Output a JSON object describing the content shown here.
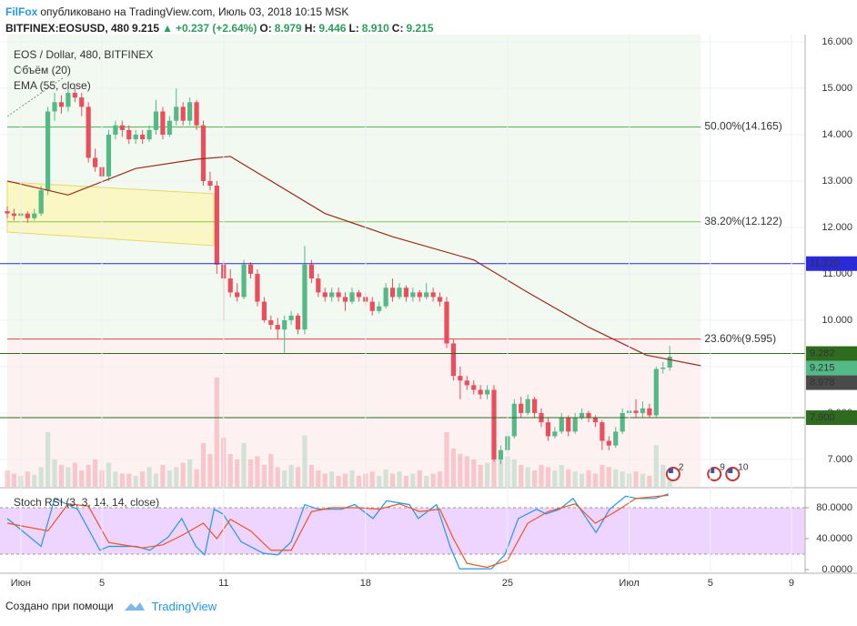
{
  "header": {
    "author": "FilFox",
    "published": "опубликовано на TradingView.com, Июль 03, 2018 10:15 MSK",
    "symbol": "BITFINEX:EOSUSD, 480",
    "last": "9.215",
    "arrow": "▲",
    "change": "+0.237 (+2.64%)",
    "ohlc": [
      {
        "label": "O:",
        "value": "8.979"
      },
      {
        "label": "H:",
        "value": "9.446"
      },
      {
        "label": "L:",
        "value": "8.910"
      },
      {
        "label": "C:",
        "value": "9.215"
      }
    ]
  },
  "chart_data": {
    "type": "candlestick",
    "legend": [
      "EOS / Dollar, 480, BITFINEX",
      "Объём (20)",
      "EMA (55, close)"
    ],
    "up_color": "#53b987",
    "down_color": "#eb4d5c",
    "xlim": [
      -1.08,
      118.03
    ],
    "ylim": [
      6.41,
      16.157
    ],
    "xticks": [
      {
        "value": 2,
        "label": "Июн"
      },
      {
        "value": 14,
        "label": "5"
      },
      {
        "value": 32,
        "label": "11"
      },
      {
        "value": 53,
        "label": "18"
      },
      {
        "value": 74,
        "label": "25"
      },
      {
        "value": 92,
        "label": "Июл"
      },
      {
        "value": 104,
        "label": "5"
      },
      {
        "value": 116,
        "label": "9"
      }
    ],
    "yticks": [
      {
        "value": 7,
        "label": "7.000"
      },
      {
        "value": 8,
        "label": "8.000"
      },
      {
        "value": 9,
        "label": "9.000"
      },
      {
        "value": 10,
        "label": "10.000"
      },
      {
        "value": 11,
        "label": "11.000"
      },
      {
        "value": 12,
        "label": "12.000"
      },
      {
        "value": 13,
        "label": "13.000"
      },
      {
        "value": 14,
        "label": "14.000"
      },
      {
        "value": 15,
        "label": "15.000"
      },
      {
        "value": 16,
        "label": "16.000"
      }
    ],
    "ohlc": [
      [
        12.35,
        12.45,
        12.2,
        12.3
      ],
      [
        12.3,
        12.4,
        12.15,
        12.25
      ],
      [
        12.25,
        12.4,
        12.2,
        12.3
      ],
      [
        12.3,
        12.35,
        12.1,
        12.2
      ],
      [
        12.2,
        12.4,
        12.15,
        12.3
      ],
      [
        12.3,
        12.9,
        12.25,
        12.8
      ],
      [
        12.8,
        14.6,
        12.7,
        14.5
      ],
      [
        14.5,
        14.9,
        14.3,
        14.7
      ],
      [
        14.7,
        14.85,
        14.45,
        14.6
      ],
      [
        14.6,
        15.05,
        14.5,
        14.9
      ],
      [
        14.9,
        15.0,
        14.7,
        14.8
      ],
      [
        14.8,
        14.9,
        14.4,
        14.6
      ],
      [
        14.6,
        14.7,
        13.4,
        13.5
      ],
      [
        13.5,
        13.7,
        13.2,
        13.3
      ],
      [
        13.3,
        13.4,
        12.95,
        13.1
      ],
      [
        13.1,
        14.1,
        13.0,
        14.0
      ],
      [
        14.0,
        14.3,
        13.9,
        14.2
      ],
      [
        14.2,
        14.3,
        13.95,
        14.1
      ],
      [
        14.1,
        14.2,
        13.8,
        13.9
      ],
      [
        13.9,
        14.1,
        13.8,
        14.0
      ],
      [
        14.0,
        14.1,
        13.8,
        13.9
      ],
      [
        13.9,
        14.2,
        13.85,
        14.1
      ],
      [
        14.1,
        14.75,
        14.0,
        14.5
      ],
      [
        14.5,
        14.6,
        13.9,
        14.0
      ],
      [
        14.0,
        14.4,
        13.95,
        14.3
      ],
      [
        14.3,
        15.0,
        14.2,
        14.6
      ],
      [
        14.6,
        14.7,
        14.2,
        14.3
      ],
      [
        14.3,
        14.8,
        14.2,
        14.7
      ],
      [
        14.7,
        14.75,
        14.1,
        14.2
      ],
      [
        14.2,
        14.3,
        12.9,
        13.0
      ],
      [
        13.0,
        13.2,
        12.8,
        12.9
      ],
      [
        12.9,
        13.0,
        11.0,
        11.2
      ],
      [
        11.2,
        11.3,
        10.0,
        10.9
      ],
      [
        10.9,
        11.1,
        10.5,
        10.6
      ],
      [
        10.6,
        10.8,
        10.4,
        10.5
      ],
      [
        10.5,
        11.3,
        10.45,
        11.2
      ],
      [
        11.2,
        11.25,
        10.9,
        11.0
      ],
      [
        11.0,
        11.1,
        10.3,
        10.4
      ],
      [
        10.4,
        10.5,
        9.95,
        10.0
      ],
      [
        10.0,
        10.1,
        9.8,
        9.9
      ],
      [
        9.9,
        10.05,
        9.6,
        9.8
      ],
      [
        9.8,
        10.1,
        9.3,
        10.0
      ],
      [
        10.0,
        10.2,
        9.9,
        10.1
      ],
      [
        10.1,
        10.15,
        9.7,
        9.8
      ],
      [
        9.8,
        11.6,
        9.7,
        11.2
      ],
      [
        11.2,
        11.3,
        10.8,
        10.9
      ],
      [
        10.9,
        11.0,
        10.5,
        10.6
      ],
      [
        10.6,
        10.7,
        10.4,
        10.5
      ],
      [
        10.5,
        10.7,
        10.4,
        10.6
      ],
      [
        10.6,
        10.7,
        10.4,
        10.5
      ],
      [
        10.5,
        10.6,
        10.2,
        10.4
      ],
      [
        10.4,
        10.7,
        10.35,
        10.6
      ],
      [
        10.6,
        10.65,
        10.4,
        10.5
      ],
      [
        10.5,
        10.6,
        10.3,
        10.4
      ],
      [
        10.4,
        10.5,
        10.1,
        10.2
      ],
      [
        10.2,
        10.4,
        10.15,
        10.3
      ],
      [
        10.3,
        10.8,
        10.25,
        10.7
      ],
      [
        10.7,
        10.9,
        10.4,
        10.5
      ],
      [
        10.5,
        10.8,
        10.45,
        10.7
      ],
      [
        10.7,
        10.75,
        10.4,
        10.5
      ],
      [
        10.5,
        10.7,
        10.4,
        10.6
      ],
      [
        10.6,
        10.65,
        10.4,
        10.5
      ],
      [
        10.5,
        10.8,
        10.45,
        10.6
      ],
      [
        10.6,
        10.7,
        10.4,
        10.5
      ],
      [
        10.5,
        10.6,
        10.3,
        10.4
      ],
      [
        10.4,
        10.5,
        9.4,
        9.5
      ],
      [
        9.5,
        9.6,
        8.7,
        8.8
      ],
      [
        8.8,
        9.0,
        8.3,
        8.7
      ],
      [
        8.7,
        8.8,
        8.5,
        8.6
      ],
      [
        8.6,
        8.7,
        8.4,
        8.5
      ],
      [
        8.5,
        8.6,
        8.3,
        8.4
      ],
      [
        8.4,
        8.6,
        8.3,
        8.5
      ],
      [
        8.5,
        8.6,
        6.95,
        7.0
      ],
      [
        7.0,
        7.3,
        6.9,
        7.2
      ],
      [
        7.2,
        7.6,
        7.1,
        7.5
      ],
      [
        7.5,
        8.3,
        7.45,
        8.2
      ],
      [
        8.2,
        8.35,
        7.9,
        8.0
      ],
      [
        8.0,
        8.4,
        7.95,
        8.3
      ],
      [
        8.3,
        8.35,
        7.9,
        8.0
      ],
      [
        8.0,
        8.1,
        7.7,
        7.8
      ],
      [
        7.8,
        7.9,
        7.4,
        7.5
      ],
      [
        7.5,
        7.7,
        7.45,
        7.6
      ],
      [
        7.6,
        8.0,
        7.55,
        7.9
      ],
      [
        7.9,
        7.95,
        7.5,
        7.6
      ],
      [
        7.6,
        8.0,
        7.55,
        7.9
      ],
      [
        7.9,
        8.1,
        7.85,
        8.0
      ],
      [
        8.0,
        8.05,
        7.8,
        7.9
      ],
      [
        7.9,
        7.95,
        7.7,
        7.8
      ],
      [
        7.8,
        7.85,
        7.2,
        7.4
      ],
      [
        7.4,
        7.5,
        7.2,
        7.3
      ],
      [
        7.3,
        7.7,
        7.25,
        7.6
      ],
      [
        7.6,
        8.1,
        7.55,
        8.0
      ],
      [
        8.0,
        8.2,
        7.95,
        8.05
      ],
      [
        8.05,
        8.3,
        7.9,
        8.0
      ],
      [
        8.0,
        8.25,
        7.9,
        8.1
      ],
      [
        8.1,
        8.2,
        7.9,
        7.95
      ],
      [
        7.95,
        9.0,
        7.9,
        8.95
      ],
      [
        8.95,
        9.1,
        8.85,
        8.979
      ],
      [
        8.979,
        9.446,
        8.91,
        9.215
      ]
    ],
    "volume_lim": [
      0,
      414
    ],
    "volume": [
      15,
      12,
      10,
      14,
      11,
      18,
      50,
      25,
      20,
      18,
      22,
      15,
      20,
      25,
      15,
      22,
      14,
      12,
      12,
      10,
      14,
      18,
      12,
      20,
      15,
      18,
      22,
      25,
      16,
      40,
      30,
      100,
      45,
      30,
      25,
      40,
      25,
      28,
      20,
      30,
      18,
      15,
      20,
      18,
      47,
      20,
      15,
      12,
      14,
      10,
      12,
      15,
      10,
      12,
      14,
      10,
      16,
      12,
      14,
      10,
      12,
      15,
      10,
      12,
      14,
      50,
      35,
      30,
      28,
      25,
      20,
      22,
      42,
      30,
      28,
      25,
      20,
      18,
      15,
      20,
      18,
      15,
      20,
      16,
      14,
      12,
      15,
      12,
      20,
      18,
      16,
      14,
      12,
      14,
      12,
      10,
      38,
      20,
      10
    ],
    "ema": {
      "color": "#9c2a1a",
      "x": [
        0,
        9,
        19,
        28,
        33,
        47,
        57,
        69,
        77,
        86,
        94.5,
        102.6
      ],
      "values": [
        13.0,
        12.7,
        13.27,
        13.47,
        13.53,
        12.3,
        11.8,
        11.3,
        10.6,
        9.85,
        9.25,
        9.02
      ]
    },
    "fib": {
      "x_range": [
        0,
        102.6
      ],
      "levels": [
        {
          "value": 14.165,
          "label": "50.00%(14.165)",
          "color": "#4caf50"
        },
        {
          "value": 12.122,
          "label": "38.20%(12.122)",
          "color": "#8bc34a"
        },
        {
          "value": 9.595,
          "label": "23.60%(9.595)",
          "color": "#e04848"
        }
      ]
    },
    "price_lines": [
      {
        "value": 11.22,
        "label": "11.220",
        "color": "#2a2ad8",
        "line": true
      },
      {
        "value": 9.282,
        "label": "9.282",
        "color": "#2e6b1f",
        "line": true
      },
      {
        "value": 9.215,
        "label": "9.215",
        "color": "#53b987",
        "line": false
      },
      {
        "value": 8.978,
        "label": "8.978",
        "color": "#4a4a4a",
        "line": false
      },
      {
        "value": 7.9,
        "label": "7.900",
        "color": "#2e6b1f",
        "line": true
      }
    ],
    "events": [
      {
        "x": 98.5,
        "label": "2"
      },
      {
        "x": 104.6,
        "label": "9"
      },
      {
        "x": 107.3,
        "label": "10"
      }
    ],
    "stoch": {
      "title": "Stoch RSI (3, 3, 14, 14, close)",
      "ylim": [
        -4.7,
        104.7
      ],
      "band": [
        20,
        80
      ],
      "yticks": [
        {
          "value": 80,
          "label": "80.0000"
        },
        {
          "value": 40,
          "label": "40.0000"
        },
        {
          "value": 0,
          "label": "0.0000"
        }
      ],
      "series": [
        {
          "color": "#2196f3",
          "x": [
            0,
            5,
            7,
            10.4,
            13.7,
            15,
            19.1,
            21.1,
            23.8,
            25.8,
            27.9,
            29.2,
            30.6,
            31.9,
            34.6,
            37.9,
            40,
            42,
            44,
            46,
            49.4,
            51.4,
            54.1,
            56.1,
            59.5,
            60.8,
            63.5,
            65.5,
            66.9,
            68.9,
            71.6,
            73.6,
            75.6,
            78.3,
            79.7,
            81.7,
            83.7,
            85.7,
            87.1,
            89.1,
            91.5,
            93.1,
            95.8,
            97.8
          ],
          "values": [
            66,
            30,
            92,
            78,
            25,
            30,
            30,
            25,
            42,
            66,
            30,
            19,
            78,
            72,
            36,
            21,
            19,
            36,
            84,
            78,
            78,
            84,
            66,
            89,
            84,
            66,
            84,
            30,
            1,
            1,
            1,
            19,
            66,
            78,
            72,
            78,
            92,
            66,
            48,
            78,
            95,
            92,
            92,
            98
          ]
        },
        {
          "color": "#f4511e",
          "x": [
            0,
            6,
            9,
            12,
            15,
            20,
            23,
            26,
            29,
            31,
            33,
            36,
            39,
            42,
            45,
            48,
            52,
            55,
            58,
            61,
            64,
            66,
            68,
            71,
            74,
            77,
            80,
            84,
            87,
            90,
            93,
            97.8
          ],
          "values": [
            60,
            50,
            85,
            82,
            35,
            28,
            32,
            45,
            60,
            40,
            65,
            50,
            25,
            25,
            75,
            80,
            80,
            78,
            85,
            75,
            78,
            40,
            8,
            3,
            12,
            60,
            75,
            85,
            60,
            75,
            92,
            96
          ]
        }
      ]
    }
  },
  "footer": {
    "text": "Создано при помощи",
    "brand": "TradingView"
  }
}
